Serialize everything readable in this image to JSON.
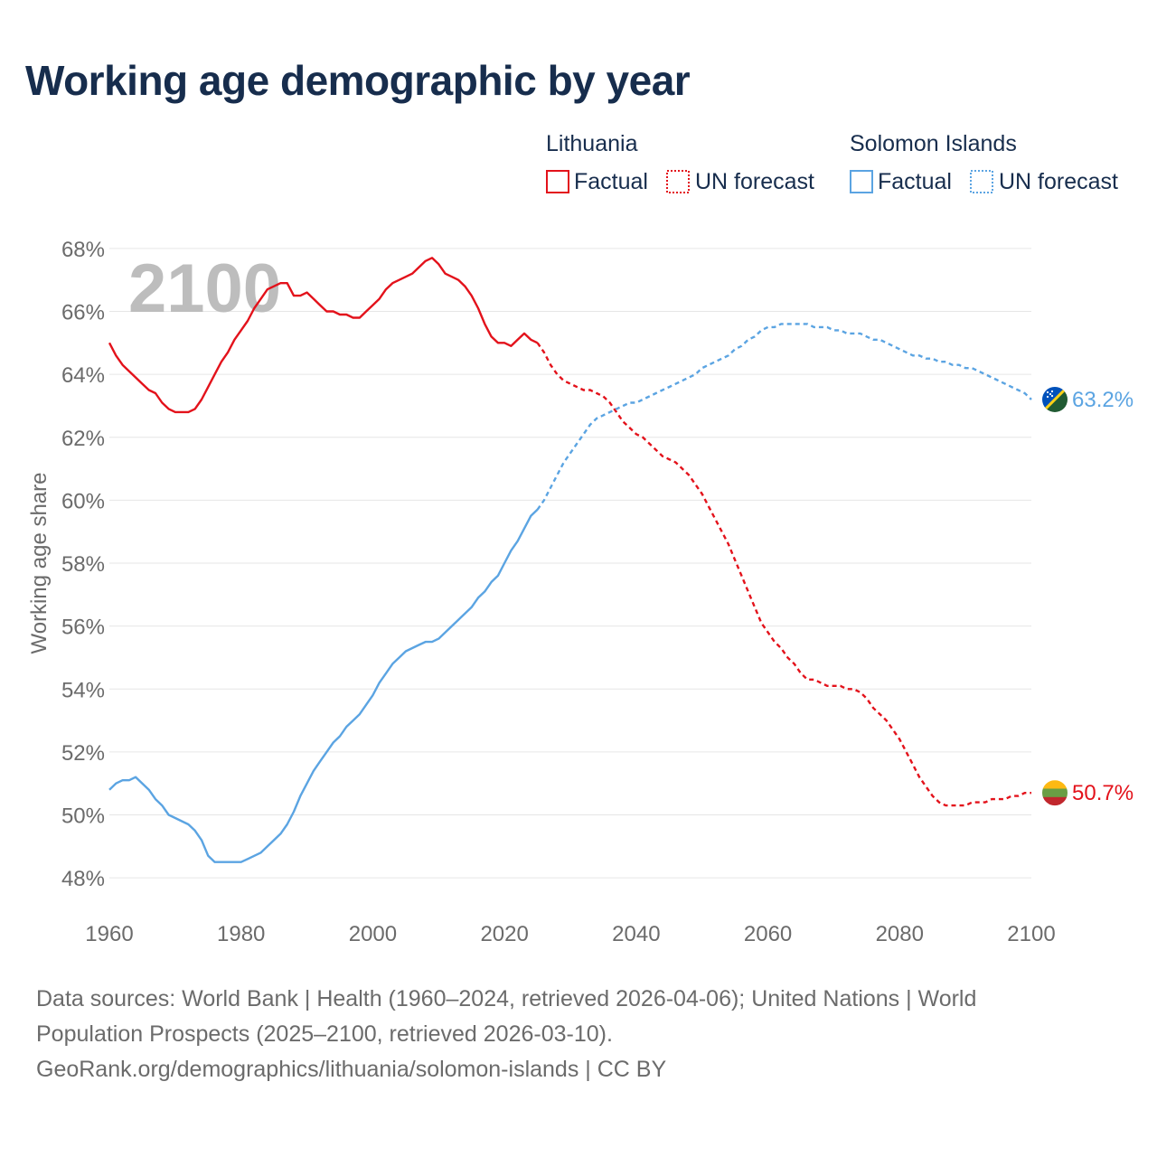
{
  "title": "Working age demographic by year",
  "legend": {
    "groups": [
      {
        "name": "Lithuania",
        "color": "#e3121b",
        "factual_label": "Factual",
        "forecast_label": "UN forecast"
      },
      {
        "name": "Solomon Islands",
        "color": "#5ba4e2",
        "factual_label": "Factual",
        "forecast_label": "UN forecast"
      }
    ]
  },
  "footer": {
    "line1": "Data sources: World Bank | Health (1960–2024, retrieved 2026-04-06); United Nations | World",
    "line2": "Population Prospects (2025–2100, retrieved 2026-03-10).",
    "line3": "GeoRank.org/demographics/lithuania/solomon-islands | CC BY"
  },
  "chart_data": {
    "type": "line",
    "title": "Working age demographic by year",
    "xlabel": "",
    "ylabel": "Working age share",
    "year_overlay": "2100",
    "xlim": [
      1960,
      2100
    ],
    "ylim": [
      47.2,
      68.6
    ],
    "x_ticks": [
      1960,
      1980,
      2000,
      2020,
      2040,
      2060,
      2080,
      2100
    ],
    "y_ticks": [
      48,
      50,
      52,
      54,
      56,
      58,
      60,
      62,
      64,
      66,
      68
    ],
    "y_tick_suffix": "%",
    "grid": true,
    "legend_position": "top-right",
    "series": [
      {
        "name": "Lithuania",
        "color": "#e3121b",
        "end_label": "50.7%",
        "flag_colors": [
          "#fdb913",
          "#6a9e44",
          "#c1272d"
        ],
        "factual": [
          [
            1960,
            65.0
          ],
          [
            1961,
            64.6
          ],
          [
            1962,
            64.3
          ],
          [
            1963,
            64.1
          ],
          [
            1964,
            63.9
          ],
          [
            1965,
            63.7
          ],
          [
            1966,
            63.5
          ],
          [
            1967,
            63.4
          ],
          [
            1968,
            63.1
          ],
          [
            1969,
            62.9
          ],
          [
            1970,
            62.8
          ],
          [
            1971,
            62.8
          ],
          [
            1972,
            62.8
          ],
          [
            1973,
            62.9
          ],
          [
            1974,
            63.2
          ],
          [
            1975,
            63.6
          ],
          [
            1976,
            64.0
          ],
          [
            1977,
            64.4
          ],
          [
            1978,
            64.7
          ],
          [
            1979,
            65.1
          ],
          [
            1980,
            65.4
          ],
          [
            1981,
            65.7
          ],
          [
            1982,
            66.1
          ],
          [
            1983,
            66.4
          ],
          [
            1984,
            66.7
          ],
          [
            1985,
            66.8
          ],
          [
            1986,
            66.9
          ],
          [
            1987,
            66.9
          ],
          [
            1988,
            66.5
          ],
          [
            1989,
            66.5
          ],
          [
            1990,
            66.6
          ],
          [
            1991,
            66.4
          ],
          [
            1992,
            66.2
          ],
          [
            1993,
            66.0
          ],
          [
            1994,
            66.0
          ],
          [
            1995,
            65.9
          ],
          [
            1996,
            65.9
          ],
          [
            1997,
            65.8
          ],
          [
            1998,
            65.8
          ],
          [
            1999,
            66.0
          ],
          [
            2000,
            66.2
          ],
          [
            2001,
            66.4
          ],
          [
            2002,
            66.7
          ],
          [
            2003,
            66.9
          ],
          [
            2004,
            67.0
          ],
          [
            2005,
            67.1
          ],
          [
            2006,
            67.2
          ],
          [
            2007,
            67.4
          ],
          [
            2008,
            67.6
          ],
          [
            2009,
            67.7
          ],
          [
            2010,
            67.5
          ],
          [
            2011,
            67.2
          ],
          [
            2012,
            67.1
          ],
          [
            2013,
            67.0
          ],
          [
            2014,
            66.8
          ],
          [
            2015,
            66.5
          ],
          [
            2016,
            66.1
          ],
          [
            2017,
            65.6
          ],
          [
            2018,
            65.2
          ],
          [
            2019,
            65.0
          ],
          [
            2020,
            65.0
          ],
          [
            2021,
            64.9
          ],
          [
            2022,
            65.1
          ],
          [
            2023,
            65.3
          ],
          [
            2024,
            65.1
          ],
          [
            2025,
            65.0
          ]
        ],
        "forecast": [
          [
            2025,
            65.0
          ],
          [
            2026,
            64.7
          ],
          [
            2027,
            64.3
          ],
          [
            2028,
            64.0
          ],
          [
            2029,
            63.8
          ],
          [
            2030,
            63.7
          ],
          [
            2031,
            63.6
          ],
          [
            2032,
            63.5
          ],
          [
            2033,
            63.5
          ],
          [
            2034,
            63.4
          ],
          [
            2035,
            63.3
          ],
          [
            2036,
            63.1
          ],
          [
            2037,
            62.8
          ],
          [
            2038,
            62.5
          ],
          [
            2039,
            62.3
          ],
          [
            2040,
            62.1
          ],
          [
            2041,
            62.0
          ],
          [
            2042,
            61.8
          ],
          [
            2043,
            61.6
          ],
          [
            2044,
            61.4
          ],
          [
            2045,
            61.3
          ],
          [
            2046,
            61.2
          ],
          [
            2047,
            61.0
          ],
          [
            2048,
            60.8
          ],
          [
            2049,
            60.5
          ],
          [
            2050,
            60.2
          ],
          [
            2051,
            59.8
          ],
          [
            2052,
            59.4
          ],
          [
            2053,
            59.0
          ],
          [
            2054,
            58.6
          ],
          [
            2055,
            58.1
          ],
          [
            2056,
            57.6
          ],
          [
            2057,
            57.1
          ],
          [
            2058,
            56.6
          ],
          [
            2059,
            56.1
          ],
          [
            2060,
            55.8
          ],
          [
            2061,
            55.5
          ],
          [
            2062,
            55.3
          ],
          [
            2063,
            55.0
          ],
          [
            2064,
            54.8
          ],
          [
            2065,
            54.5
          ],
          [
            2066,
            54.3
          ],
          [
            2067,
            54.3
          ],
          [
            2068,
            54.2
          ],
          [
            2069,
            54.1
          ],
          [
            2070,
            54.1
          ],
          [
            2071,
            54.1
          ],
          [
            2072,
            54.0
          ],
          [
            2073,
            54.0
          ],
          [
            2074,
            53.9
          ],
          [
            2075,
            53.7
          ],
          [
            2076,
            53.4
          ],
          [
            2077,
            53.2
          ],
          [
            2078,
            53.0
          ],
          [
            2079,
            52.7
          ],
          [
            2080,
            52.4
          ],
          [
            2081,
            52.0
          ],
          [
            2082,
            51.6
          ],
          [
            2083,
            51.2
          ],
          [
            2084,
            50.9
          ],
          [
            2085,
            50.6
          ],
          [
            2086,
            50.4
          ],
          [
            2087,
            50.3
          ],
          [
            2088,
            50.3
          ],
          [
            2089,
            50.3
          ],
          [
            2090,
            50.3
          ],
          [
            2091,
            50.4
          ],
          [
            2092,
            50.4
          ],
          [
            2093,
            50.4
          ],
          [
            2094,
            50.5
          ],
          [
            2095,
            50.5
          ],
          [
            2096,
            50.5
          ],
          [
            2097,
            50.6
          ],
          [
            2098,
            50.6
          ],
          [
            2099,
            50.7
          ],
          [
            2100,
            50.7
          ]
        ]
      },
      {
        "name": "Solomon Islands",
        "color": "#5ba4e2",
        "end_label": "63.2%",
        "flag_colors": [
          "#0051ba",
          "#215b33",
          "#fcd116"
        ],
        "factual": [
          [
            1960,
            50.8
          ],
          [
            1961,
            51.0
          ],
          [
            1962,
            51.1
          ],
          [
            1963,
            51.1
          ],
          [
            1964,
            51.2
          ],
          [
            1965,
            51.0
          ],
          [
            1966,
            50.8
          ],
          [
            1967,
            50.5
          ],
          [
            1968,
            50.3
          ],
          [
            1969,
            50.0
          ],
          [
            1970,
            49.9
          ],
          [
            1971,
            49.8
          ],
          [
            1972,
            49.7
          ],
          [
            1973,
            49.5
          ],
          [
            1974,
            49.2
          ],
          [
            1975,
            48.7
          ],
          [
            1976,
            48.5
          ],
          [
            1977,
            48.5
          ],
          [
            1978,
            48.5
          ],
          [
            1979,
            48.5
          ],
          [
            1980,
            48.5
          ],
          [
            1981,
            48.6
          ],
          [
            1982,
            48.7
          ],
          [
            1983,
            48.8
          ],
          [
            1984,
            49.0
          ],
          [
            1985,
            49.2
          ],
          [
            1986,
            49.4
          ],
          [
            1987,
            49.7
          ],
          [
            1988,
            50.1
          ],
          [
            1989,
            50.6
          ],
          [
            1990,
            51.0
          ],
          [
            1991,
            51.4
          ],
          [
            1992,
            51.7
          ],
          [
            1993,
            52.0
          ],
          [
            1994,
            52.3
          ],
          [
            1995,
            52.5
          ],
          [
            1996,
            52.8
          ],
          [
            1997,
            53.0
          ],
          [
            1998,
            53.2
          ],
          [
            1999,
            53.5
          ],
          [
            2000,
            53.8
          ],
          [
            2001,
            54.2
          ],
          [
            2002,
            54.5
          ],
          [
            2003,
            54.8
          ],
          [
            2004,
            55.0
          ],
          [
            2005,
            55.2
          ],
          [
            2006,
            55.3
          ],
          [
            2007,
            55.4
          ],
          [
            2008,
            55.5
          ],
          [
            2009,
            55.5
          ],
          [
            2010,
            55.6
          ],
          [
            2011,
            55.8
          ],
          [
            2012,
            56.0
          ],
          [
            2013,
            56.2
          ],
          [
            2014,
            56.4
          ],
          [
            2015,
            56.6
          ],
          [
            2016,
            56.9
          ],
          [
            2017,
            57.1
          ],
          [
            2018,
            57.4
          ],
          [
            2019,
            57.6
          ],
          [
            2020,
            58.0
          ],
          [
            2021,
            58.4
          ],
          [
            2022,
            58.7
          ],
          [
            2023,
            59.1
          ],
          [
            2024,
            59.5
          ],
          [
            2025,
            59.7
          ]
        ],
        "forecast": [
          [
            2025,
            59.7
          ],
          [
            2026,
            60.0
          ],
          [
            2027,
            60.4
          ],
          [
            2028,
            60.8
          ],
          [
            2029,
            61.2
          ],
          [
            2030,
            61.5
          ],
          [
            2031,
            61.8
          ],
          [
            2032,
            62.1
          ],
          [
            2033,
            62.4
          ],
          [
            2034,
            62.6
          ],
          [
            2035,
            62.7
          ],
          [
            2036,
            62.8
          ],
          [
            2037,
            62.9
          ],
          [
            2038,
            63.0
          ],
          [
            2039,
            63.1
          ],
          [
            2040,
            63.1
          ],
          [
            2041,
            63.2
          ],
          [
            2042,
            63.3
          ],
          [
            2043,
            63.4
          ],
          [
            2044,
            63.5
          ],
          [
            2045,
            63.6
          ],
          [
            2046,
            63.7
          ],
          [
            2047,
            63.8
          ],
          [
            2048,
            63.9
          ],
          [
            2049,
            64.0
          ],
          [
            2050,
            64.2
          ],
          [
            2051,
            64.3
          ],
          [
            2052,
            64.4
          ],
          [
            2053,
            64.5
          ],
          [
            2054,
            64.6
          ],
          [
            2055,
            64.8
          ],
          [
            2056,
            64.9
          ],
          [
            2057,
            65.1
          ],
          [
            2058,
            65.2
          ],
          [
            2059,
            65.4
          ],
          [
            2060,
            65.5
          ],
          [
            2061,
            65.5
          ],
          [
            2062,
            65.6
          ],
          [
            2063,
            65.6
          ],
          [
            2064,
            65.6
          ],
          [
            2065,
            65.6
          ],
          [
            2066,
            65.6
          ],
          [
            2067,
            65.5
          ],
          [
            2068,
            65.5
          ],
          [
            2069,
            65.5
          ],
          [
            2070,
            65.4
          ],
          [
            2071,
            65.4
          ],
          [
            2072,
            65.3
          ],
          [
            2073,
            65.3
          ],
          [
            2074,
            65.3
          ],
          [
            2075,
            65.2
          ],
          [
            2076,
            65.1
          ],
          [
            2077,
            65.1
          ],
          [
            2078,
            65.0
          ],
          [
            2079,
            64.9
          ],
          [
            2080,
            64.8
          ],
          [
            2081,
            64.7
          ],
          [
            2082,
            64.6
          ],
          [
            2083,
            64.6
          ],
          [
            2084,
            64.5
          ],
          [
            2085,
            64.5
          ],
          [
            2086,
            64.4
          ],
          [
            2087,
            64.4
          ],
          [
            2088,
            64.3
          ],
          [
            2089,
            64.3
          ],
          [
            2090,
            64.2
          ],
          [
            2091,
            64.2
          ],
          [
            2092,
            64.1
          ],
          [
            2093,
            64.0
          ],
          [
            2094,
            63.9
          ],
          [
            2095,
            63.8
          ],
          [
            2096,
            63.7
          ],
          [
            2097,
            63.6
          ],
          [
            2098,
            63.5
          ],
          [
            2099,
            63.4
          ],
          [
            2100,
            63.2
          ]
        ]
      }
    ]
  }
}
